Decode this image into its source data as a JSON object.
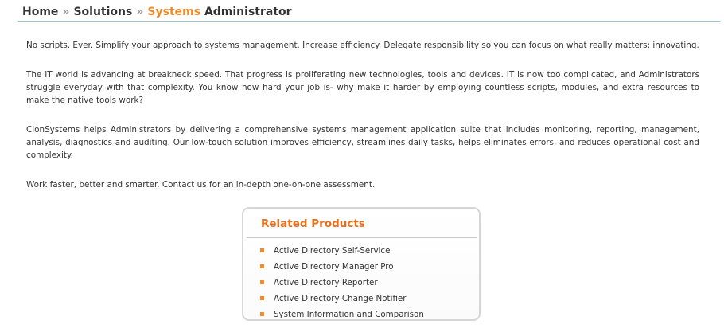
{
  "breadcrumb": {
    "home": "Home",
    "separator": "»",
    "solutions": "Solutions",
    "current_accent": "Systems",
    "current_rest": "Administrator"
  },
  "content": {
    "paragraphs": [
      "No scripts. Ever. Simplify your approach to systems management. Increase efficiency. Delegate responsibility so you can focus on what really matters: innovating.",
      "The IT world is advancing at breakneck speed. That progress is proliferating new technologies, tools and devices. IT is now too complicated, and Administrators struggle everyday with that complexity. You know how hard your job is- why make it harder by employing countless scripts, modules, and extra resources to make the native tools work?",
      "CionSystems helps Administrators by delivering a comprehensive systems management application suite that includes monitoring, reporting, management, analysis, diagnostics and auditing. Our low-touch solution improves efficiency, streamlines daily tasks, helps eliminates errors, and reduces operational cost and complexity.",
      "Work faster, better and smarter. Contact us for an in-depth one-on-one assessment."
    ]
  },
  "related_products": {
    "title": "Related Products",
    "items": [
      {
        "label": "Active Directory Self-Service",
        "icon": "orange-square-bullet-icon"
      },
      {
        "label": "Active Directory Manager Pro",
        "icon": "orange-square-bullet-icon"
      },
      {
        "label": "Active Directory Reporter",
        "icon": "orange-square-bullet-icon"
      },
      {
        "label": "Active Directory Change Notifier",
        "icon": "orange-square-bullet-icon"
      },
      {
        "label": "System Information and Comparison",
        "icon": "orange-square-bullet-icon"
      }
    ]
  },
  "colors": {
    "accent_orange": "#ee8a2a",
    "heading_orange": "#ea6f1b",
    "body_text": "#333333",
    "rule_blue": "#9dc4cc",
    "box_border": "#d6d6d6"
  }
}
